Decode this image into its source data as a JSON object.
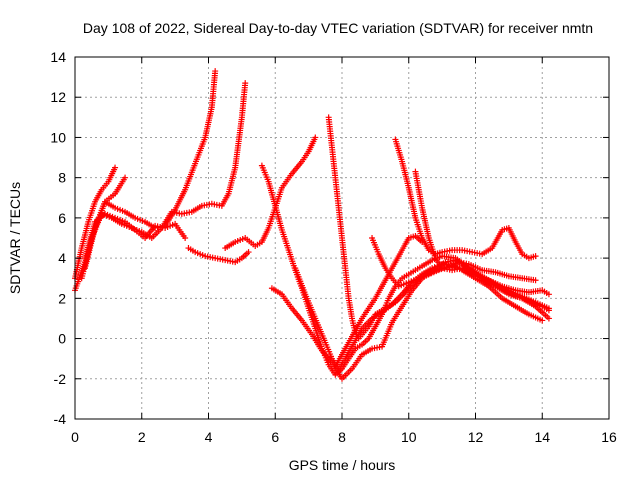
{
  "chart_data": {
    "type": "scatter",
    "title": "Day 108 of 2022, Sidereal Day-to-day VTEC variation (SDTVAR) for receiver nmtn",
    "xlabel": "GPS time / hours",
    "ylabel": "SDTVAR / TECUs",
    "xlim": [
      0,
      16
    ],
    "ylim": [
      -4,
      14
    ],
    "xticks": [
      "0",
      "2",
      "4",
      "6",
      "8",
      "10",
      "12",
      "14",
      "16"
    ],
    "yticks": [
      "-4",
      "-2",
      "0",
      "2",
      "4",
      "6",
      "8",
      "10",
      "12",
      "14"
    ],
    "grid": true,
    "marker": "+",
    "color": "#ff0000",
    "series": [
      {
        "x": [
          0.0,
          0.2,
          0.4,
          0.6,
          0.8,
          1.0,
          1.2
        ],
        "y": [
          3.0,
          4.5,
          5.8,
          6.8,
          7.4,
          7.8,
          8.5
        ]
      },
      {
        "x": [
          0.0,
          0.3,
          0.6,
          0.9,
          1.2,
          1.5
        ],
        "y": [
          2.4,
          3.8,
          5.5,
          6.8,
          7.2,
          8.0
        ]
      },
      {
        "x": [
          0.3,
          0.6,
          0.9,
          1.2,
          1.5,
          1.8,
          2.1,
          2.4,
          2.7,
          3.0,
          3.3,
          3.6,
          3.9,
          4.1,
          4.2
        ],
        "y": [
          3.5,
          5.5,
          6.8,
          6.5,
          6.3,
          6.0,
          5.8,
          5.5,
          5.6,
          6.4,
          7.4,
          8.7,
          10.0,
          11.5,
          13.3
        ]
      },
      {
        "x": [
          0.2,
          0.5,
          0.8,
          1.1,
          1.4,
          1.7,
          2.0,
          2.3,
          2.6,
          2.9,
          3.2,
          3.5,
          3.8,
          4.1,
          4.4,
          4.6,
          4.8,
          5.0,
          5.1
        ],
        "y": [
          3.0,
          5.0,
          6.2,
          6.0,
          5.7,
          5.5,
          5.3,
          5.0,
          5.5,
          6.3,
          6.2,
          6.3,
          6.6,
          6.7,
          6.6,
          7.2,
          8.5,
          11.0,
          12.7
        ]
      },
      {
        "x": [
          0.3,
          0.6,
          0.9,
          1.2,
          1.5,
          1.8,
          2.1,
          2.4,
          2.7,
          3.0,
          3.3
        ],
        "y": [
          4.0,
          5.8,
          6.2,
          6.0,
          5.8,
          5.4,
          5.0,
          5.6,
          5.5,
          5.7,
          5.0
        ]
      },
      {
        "x": [
          3.4,
          3.6,
          3.9,
          4.2,
          4.5,
          4.8,
          5.0,
          5.2
        ],
        "y": [
          4.5,
          4.3,
          4.1,
          4.0,
          3.9,
          3.8,
          4.0,
          4.3
        ]
      },
      {
        "x": [
          4.5,
          4.8,
          5.1,
          5.4,
          5.6,
          5.8,
          6.0,
          6.2,
          6.5,
          6.8,
          7.0,
          7.2
        ],
        "y": [
          4.5,
          4.8,
          5.0,
          4.6,
          4.8,
          5.5,
          6.5,
          7.5,
          8.2,
          8.8,
          9.3,
          10.0
        ]
      },
      {
        "x": [
          5.6,
          5.8,
          6.0,
          6.2,
          6.4,
          6.6,
          6.8,
          7.0,
          7.2,
          7.4,
          7.6,
          7.8,
          8.0,
          8.2,
          8.4,
          8.6,
          8.8,
          9.0,
          9.2,
          9.4,
          9.6,
          9.8,
          10.0,
          10.2,
          10.4,
          10.7,
          11.0,
          11.4,
          11.8,
          12.2,
          12.6,
          13.0,
          13.4,
          13.8,
          14.2
        ],
        "y": [
          8.6,
          7.8,
          6.6,
          5.4,
          4.4,
          3.4,
          2.5,
          1.5,
          0.5,
          -0.5,
          -1.3,
          -1.8,
          -1.5,
          -1.0,
          -0.5,
          -0.3,
          0.0,
          0.6,
          1.2,
          2.0,
          2.6,
          3.0,
          3.2,
          3.4,
          3.6,
          3.9,
          4.1,
          4.0,
          3.5,
          3.0,
          2.6,
          2.2,
          2.0,
          1.6,
          1.0
        ]
      },
      {
        "x": [
          5.9,
          6.2,
          6.5,
          6.8,
          7.1,
          7.4,
          7.7,
          8.0,
          8.3,
          8.6,
          8.9,
          9.2,
          9.5,
          9.8,
          10.1,
          10.4,
          10.7,
          11.0,
          11.3,
          11.6,
          12.0,
          12.4,
          12.8,
          13.2,
          13.6,
          14.0
        ],
        "y": [
          2.5,
          2.2,
          1.5,
          0.9,
          0.2,
          -0.6,
          -1.2,
          -2.0,
          -1.5,
          -0.8,
          -0.5,
          -0.4,
          0.8,
          1.6,
          2.4,
          3.0,
          3.3,
          3.5,
          3.6,
          3.4,
          3.0,
          2.6,
          2.0,
          1.6,
          1.2,
          0.9
        ]
      },
      {
        "x": [
          6.6,
          6.9,
          7.2,
          7.5,
          7.7,
          7.9,
          8.1,
          8.3,
          8.6,
          8.9,
          9.2,
          9.5,
          9.8,
          10.1,
          10.4,
          10.7,
          11.0,
          11.4,
          11.8,
          12.2,
          12.6,
          13.0,
          13.4,
          13.8,
          14.2
        ],
        "y": [
          3.5,
          2.2,
          1.0,
          -0.2,
          -1.0,
          -1.5,
          -1.0,
          -0.4,
          0.5,
          1.0,
          1.3,
          1.7,
          2.2,
          2.8,
          3.2,
          3.5,
          3.7,
          3.6,
          3.3,
          3.0,
          2.7,
          2.4,
          2.1,
          1.8,
          1.5
        ]
      },
      {
        "x": [
          7.6,
          7.7,
          7.8,
          7.9,
          8.0,
          8.1,
          8.2,
          8.3,
          8.4,
          8.5,
          8.6,
          8.8,
          9.0,
          9.3,
          9.6,
          9.9,
          10.2,
          10.5,
          10.8,
          11.1,
          11.4,
          11.7,
          12.0,
          12.4,
          12.8,
          13.2,
          13.6,
          14.0,
          14.2
        ],
        "y": [
          11.0,
          9.5,
          8.0,
          6.5,
          5.0,
          3.5,
          2.0,
          1.0,
          0.3,
          0.0,
          0.2,
          0.6,
          1.2,
          1.5,
          1.8,
          2.3,
          2.8,
          3.2,
          3.5,
          3.8,
          3.9,
          3.6,
          3.2,
          2.9,
          2.6,
          2.4,
          2.3,
          2.4,
          2.2
        ]
      },
      {
        "x": [
          7.8,
          8.0,
          8.2,
          8.4,
          8.6,
          8.8,
          9.0,
          9.2,
          9.4,
          9.6,
          9.8,
          10.0,
          10.2,
          10.4
        ],
        "y": [
          -1.4,
          -0.8,
          -0.2,
          0.4,
          1.0,
          1.5,
          2.0,
          2.6,
          3.2,
          3.8,
          4.4,
          5.0,
          5.1,
          4.8
        ]
      },
      {
        "x": [
          8.9,
          9.1,
          9.3,
          9.5,
          9.7,
          10.0,
          10.3,
          10.6,
          10.9,
          11.2,
          11.5,
          11.8,
          12.2,
          12.6,
          13.0,
          13.4,
          13.8
        ],
        "y": [
          5.0,
          4.2,
          3.5,
          3.0,
          2.6,
          2.8,
          3.0,
          3.2,
          3.4,
          3.6,
          3.8,
          3.7,
          3.4,
          3.3,
          3.1,
          3.0,
          2.9
        ]
      },
      {
        "x": [
          9.6,
          9.8,
          10.0,
          10.2,
          10.4,
          10.6,
          10.8,
          11.0,
          11.3,
          11.6,
          11.9,
          12.2,
          12.5,
          12.8,
          13.0,
          13.2,
          13.4,
          13.6,
          13.8
        ],
        "y": [
          9.9,
          8.8,
          7.5,
          6.0,
          5.0,
          4.4,
          4.2,
          4.3,
          4.4,
          4.4,
          4.3,
          4.2,
          4.5,
          5.4,
          5.5,
          4.8,
          4.2,
          4.0,
          4.1
        ]
      },
      {
        "x": [
          10.2,
          10.4,
          10.6,
          10.8,
          11.0,
          11.3,
          11.6,
          11.9,
          12.2,
          12.5,
          12.8,
          13.1,
          13.4,
          13.7,
          14.0,
          14.2
        ],
        "y": [
          8.3,
          6.5,
          5.0,
          4.0,
          3.5,
          3.4,
          3.5,
          3.4,
          3.1,
          2.8,
          2.5,
          2.2,
          2.0,
          1.8,
          1.6,
          1.4
        ]
      }
    ]
  }
}
